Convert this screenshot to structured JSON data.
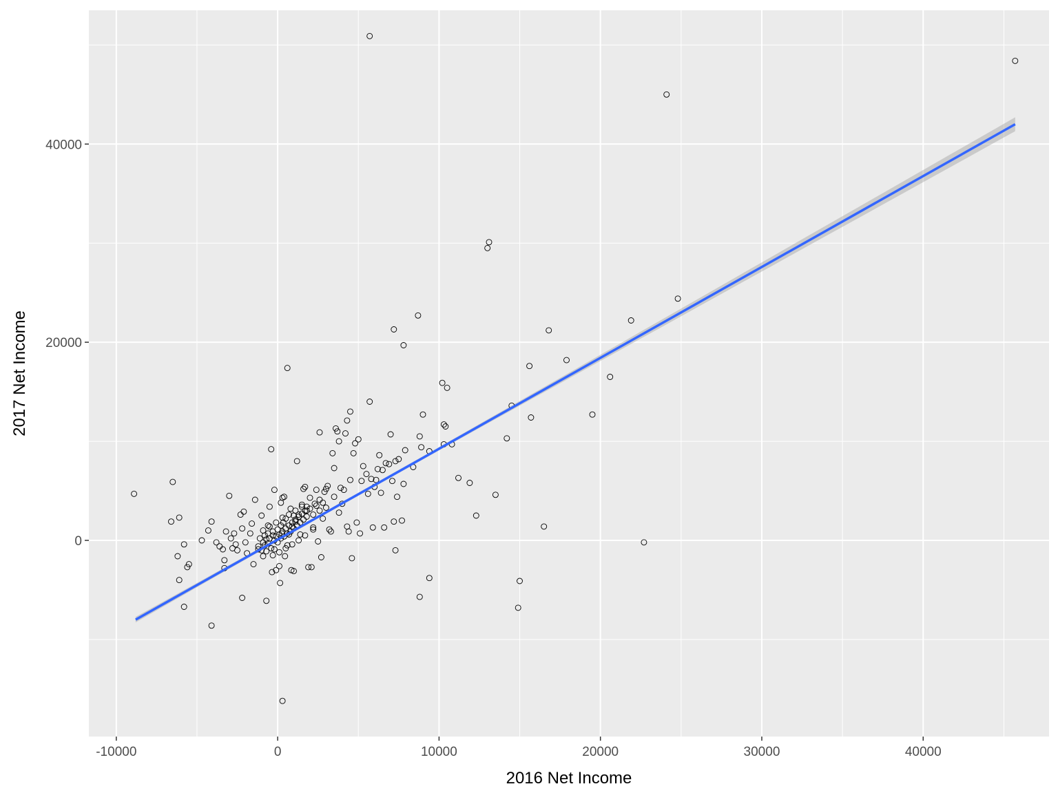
{
  "chart_data": {
    "type": "scatter",
    "title": "",
    "xlabel": "2016 Net Income",
    "ylabel": "2017 Net Income",
    "xlim": [
      -11700,
      47800
    ],
    "ylim": [
      -19800,
      53500
    ],
    "x_ticks": [
      -10000,
      0,
      10000,
      20000,
      30000,
      40000
    ],
    "y_ticks": [
      0,
      20000,
      40000
    ],
    "x_tick_labels": [
      "-10000",
      "0",
      "10000",
      "20000",
      "30000",
      "40000"
    ],
    "y_tick_labels": [
      "0",
      "20000",
      "40000"
    ],
    "grid": true,
    "legend": "none",
    "colors": {
      "panel": "#ebebeb",
      "grid": "#ffffff",
      "point_stroke": "#000000",
      "fit_line": "#3366ff",
      "ci_band": "#999999"
    },
    "fit": {
      "method": "lm",
      "x": [
        -8800,
        45700
      ],
      "y": [
        -8000,
        42000
      ],
      "se_halfwidth_at": [
        [
          -8800,
          280
        ],
        [
          0,
          140
        ],
        [
          10000,
          160
        ],
        [
          45700,
          700
        ]
      ]
    },
    "points": [
      [
        -8900,
        4700
      ],
      [
        -6500,
        5900
      ],
      [
        -6600,
        1900
      ],
      [
        -6100,
        2300
      ],
      [
        -6200,
        -1600
      ],
      [
        -6100,
        -4000
      ],
      [
        -5800,
        -6700
      ],
      [
        -5800,
        -400
      ],
      [
        -5600,
        -2700
      ],
      [
        -5500,
        -2400
      ],
      [
        -4700,
        0
      ],
      [
        -4300,
        1000
      ],
      [
        -4100,
        1900
      ],
      [
        -4100,
        -8600
      ],
      [
        -3800,
        -200
      ],
      [
        -3600,
        -600
      ],
      [
        -3400,
        -900
      ],
      [
        -3300,
        -2800
      ],
      [
        -3300,
        -2000
      ],
      [
        -3200,
        900
      ],
      [
        -3000,
        4500
      ],
      [
        -2900,
        200
      ],
      [
        -2800,
        -800
      ],
      [
        -2700,
        700
      ],
      [
        -2600,
        -400
      ],
      [
        -2500,
        -1000
      ],
      [
        -2300,
        2600
      ],
      [
        -2200,
        1200
      ],
      [
        -2200,
        -5800
      ],
      [
        -2100,
        2900
      ],
      [
        -2000,
        -200
      ],
      [
        -1900,
        -1300
      ],
      [
        -1700,
        700
      ],
      [
        -1600,
        1700
      ],
      [
        -1500,
        -2400
      ],
      [
        -1400,
        4100
      ],
      [
        -1200,
        -900
      ],
      [
        -1000,
        2500
      ],
      [
        -900,
        -1600
      ],
      [
        -800,
        500
      ],
      [
        -700,
        -6100
      ],
      [
        -600,
        1500
      ],
      [
        -500,
        3400
      ],
      [
        -400,
        9200
      ],
      [
        -350,
        -3200
      ],
      [
        -300,
        900
      ],
      [
        -200,
        5100
      ],
      [
        -100,
        -3000
      ],
      [
        0,
        1100
      ],
      [
        100,
        -2600
      ],
      [
        200,
        3800
      ],
      [
        150,
        -4300
      ],
      [
        250,
        700
      ],
      [
        300,
        4300
      ],
      [
        300,
        -16200
      ],
      [
        350,
        1800
      ],
      [
        400,
        4400
      ],
      [
        450,
        -1600
      ],
      [
        500,
        2200
      ],
      [
        600,
        17400
      ],
      [
        700,
        600
      ],
      [
        800,
        3200
      ],
      [
        850,
        -3000
      ],
      [
        900,
        1400
      ],
      [
        1000,
        -3100
      ],
      [
        1100,
        1900
      ],
      [
        1200,
        8000
      ],
      [
        1300,
        2600
      ],
      [
        1500,
        3600
      ],
      [
        1600,
        5200
      ],
      [
        1700,
        5400
      ],
      [
        1800,
        3000
      ],
      [
        1900,
        -2700
      ],
      [
        2000,
        4300
      ],
      [
        2100,
        -2700
      ],
      [
        2200,
        1100
      ],
      [
        2300,
        3700
      ],
      [
        2400,
        5100
      ],
      [
        2500,
        -100
      ],
      [
        2600,
        10900
      ],
      [
        2700,
        -1700
      ],
      [
        2800,
        2200
      ],
      [
        2900,
        4900
      ],
      [
        3000,
        5200
      ],
      [
        3100,
        5500
      ],
      [
        3200,
        1100
      ],
      [
        3300,
        900
      ],
      [
        3400,
        8800
      ],
      [
        3500,
        7300
      ],
      [
        3500,
        4400
      ],
      [
        3600,
        11300
      ],
      [
        3700,
        11000
      ],
      [
        3800,
        10000
      ],
      [
        3800,
        2800
      ],
      [
        3900,
        5300
      ],
      [
        4000,
        3700
      ],
      [
        4100,
        5100
      ],
      [
        4200,
        10800
      ],
      [
        4300,
        12100
      ],
      [
        4300,
        1400
      ],
      [
        4400,
        900
      ],
      [
        4500,
        6100
      ],
      [
        4500,
        13000
      ],
      [
        4600,
        -1800
      ],
      [
        4700,
        8800
      ],
      [
        4800,
        9800
      ],
      [
        4900,
        1800
      ],
      [
        5000,
        10200
      ],
      [
        5100,
        700
      ],
      [
        5200,
        6000
      ],
      [
        5300,
        7500
      ],
      [
        5500,
        6700
      ],
      [
        5600,
        4700
      ],
      [
        5700,
        50900
      ],
      [
        5700,
        14000
      ],
      [
        5800,
        6200
      ],
      [
        5900,
        1300
      ],
      [
        6000,
        5400
      ],
      [
        6100,
        6100
      ],
      [
        6200,
        7200
      ],
      [
        6300,
        8600
      ],
      [
        6400,
        4800
      ],
      [
        6500,
        7100
      ],
      [
        6600,
        1300
      ],
      [
        6700,
        7800
      ],
      [
        6900,
        7700
      ],
      [
        7000,
        10700
      ],
      [
        7100,
        6000
      ],
      [
        7200,
        1900
      ],
      [
        7200,
        21300
      ],
      [
        7300,
        8000
      ],
      [
        7300,
        -1000
      ],
      [
        7400,
        4400
      ],
      [
        7500,
        8200
      ],
      [
        7700,
        2000
      ],
      [
        7800,
        5700
      ],
      [
        7800,
        19700
      ],
      [
        7900,
        9100
      ],
      [
        8400,
        7400
      ],
      [
        8700,
        22700
      ],
      [
        8800,
        10500
      ],
      [
        8800,
        -5700
      ],
      [
        8900,
        9400
      ],
      [
        9000,
        12700
      ],
      [
        9400,
        9000
      ],
      [
        9400,
        -3800
      ],
      [
        10200,
        15900
      ],
      [
        10300,
        11700
      ],
      [
        10300,
        9700
      ],
      [
        10400,
        11500
      ],
      [
        10500,
        15400
      ],
      [
        10800,
        9700
      ],
      [
        11200,
        6300
      ],
      [
        11900,
        5800
      ],
      [
        12300,
        2500
      ],
      [
        13000,
        29500
      ],
      [
        13100,
        30100
      ],
      [
        13500,
        4600
      ],
      [
        14200,
        10300
      ],
      [
        14500,
        13600
      ],
      [
        14900,
        -6800
      ],
      [
        15000,
        -4100
      ],
      [
        15600,
        17600
      ],
      [
        15700,
        12400
      ],
      [
        16500,
        1400
      ],
      [
        16800,
        21200
      ],
      [
        17900,
        18200
      ],
      [
        19500,
        12700
      ],
      [
        20600,
        16500
      ],
      [
        21900,
        22200
      ],
      [
        22700,
        -200
      ],
      [
        24100,
        45000
      ],
      [
        24800,
        24400
      ],
      [
        45700,
        48400
      ],
      [
        -1200,
        -600
      ],
      [
        -1100,
        200
      ],
      [
        -900,
        -200
      ],
      [
        -800,
        -500
      ],
      [
        -700,
        100
      ],
      [
        -600,
        -300
      ],
      [
        -500,
        200
      ],
      [
        -400,
        -800
      ],
      [
        -300,
        500
      ],
      [
        -200,
        0
      ],
      [
        -100,
        400
      ],
      [
        0,
        -200
      ],
      [
        100,
        600
      ],
      [
        200,
        200
      ],
      [
        300,
        900
      ],
      [
        400,
        400
      ],
      [
        500,
        1200
      ],
      [
        600,
        700
      ],
      [
        700,
        1500
      ],
      [
        800,
        900
      ],
      [
        900,
        1800
      ],
      [
        1000,
        1200
      ],
      [
        1100,
        2100
      ],
      [
        1200,
        1500
      ],
      [
        1300,
        2400
      ],
      [
        1400,
        1800
      ],
      [
        1500,
        2700
      ],
      [
        1600,
        2100
      ],
      [
        1700,
        3000
      ],
      [
        1800,
        2400
      ],
      [
        2000,
        3200
      ],
      [
        2200,
        2600
      ],
      [
        2400,
        3500
      ],
      [
        2600,
        3000
      ],
      [
        2800,
        3800
      ],
      [
        3000,
        3300
      ],
      [
        -900,
        1000
      ],
      [
        -700,
        -1100
      ],
      [
        -500,
        1400
      ],
      [
        -300,
        -1500
      ],
      [
        -100,
        1800
      ],
      [
        100,
        -1200
      ],
      [
        300,
        2300
      ],
      [
        500,
        -800
      ],
      [
        700,
        2600
      ],
      [
        900,
        -400
      ],
      [
        1100,
        3000
      ],
      [
        1300,
        0
      ],
      [
        1500,
        3400
      ],
      [
        1700,
        500
      ],
      [
        -1000,
        -1000
      ],
      [
        -600,
        700
      ],
      [
        -200,
        -900
      ],
      [
        200,
        1500
      ],
      [
        600,
        -500
      ],
      [
        1000,
        2500
      ],
      [
        1400,
        600
      ],
      [
        1800,
        3400
      ],
      [
        2200,
        1300
      ],
      [
        2600,
        4100
      ]
    ]
  }
}
